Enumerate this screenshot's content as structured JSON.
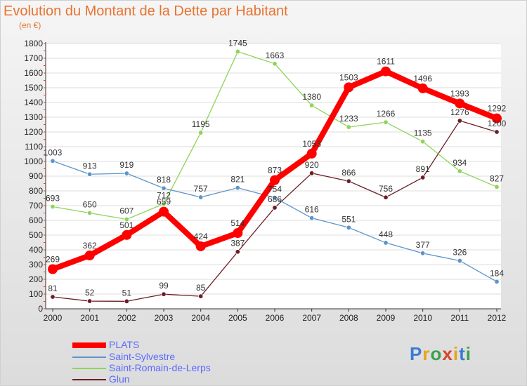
{
  "title": "Evolution du Montant de la Dette par Habitant",
  "subtitle": "(en €)",
  "logo": "Proxiti",
  "colors": {
    "PLATS": "#ff0000",
    "Saint-Sylvestre": "#5c94c9",
    "Saint-Romain-de-Lerps": "#8fd45a",
    "Glun": "#6b1f24",
    "title": "#e87330",
    "legend_text": "#5b6bff"
  },
  "chart_data": {
    "type": "line",
    "title": "Evolution du Montant de la Dette par Habitant",
    "ylabel": "(en €)",
    "xlabel": "",
    "ylim": [
      0,
      1800
    ],
    "yticks": [
      0,
      100,
      200,
      300,
      400,
      500,
      600,
      700,
      800,
      900,
      1000,
      1100,
      1200,
      1300,
      1400,
      1500,
      1600,
      1700,
      1800
    ],
    "grid": true,
    "legend_placement": "bottom-left",
    "categories": [
      "2000",
      "2001",
      "2002",
      "2003",
      "2004",
      "2005",
      "2006",
      "2007",
      "2008",
      "2009",
      "2010",
      "2011",
      "2012"
    ],
    "series": [
      {
        "name": "PLATS",
        "values": [
          269,
          362,
          501,
          659,
          424,
          514,
          873,
          1053,
          1503,
          1611,
          1496,
          1393,
          1292
        ]
      },
      {
        "name": "Saint-Sylvestre",
        "values": [
          1003,
          913,
          919,
          818,
          757,
          821,
          754,
          616,
          551,
          448,
          377,
          326,
          184
        ]
      },
      {
        "name": "Saint-Romain-de-Lerps",
        "values": [
          693,
          650,
          607,
          712,
          1195,
          1745,
          1663,
          1380,
          1233,
          1266,
          1135,
          934,
          827
        ]
      },
      {
        "name": "Glun",
        "values": [
          81,
          52,
          51,
          99,
          85,
          387,
          686,
          920,
          866,
          756,
          891,
          1276,
          1200
        ]
      }
    ]
  }
}
